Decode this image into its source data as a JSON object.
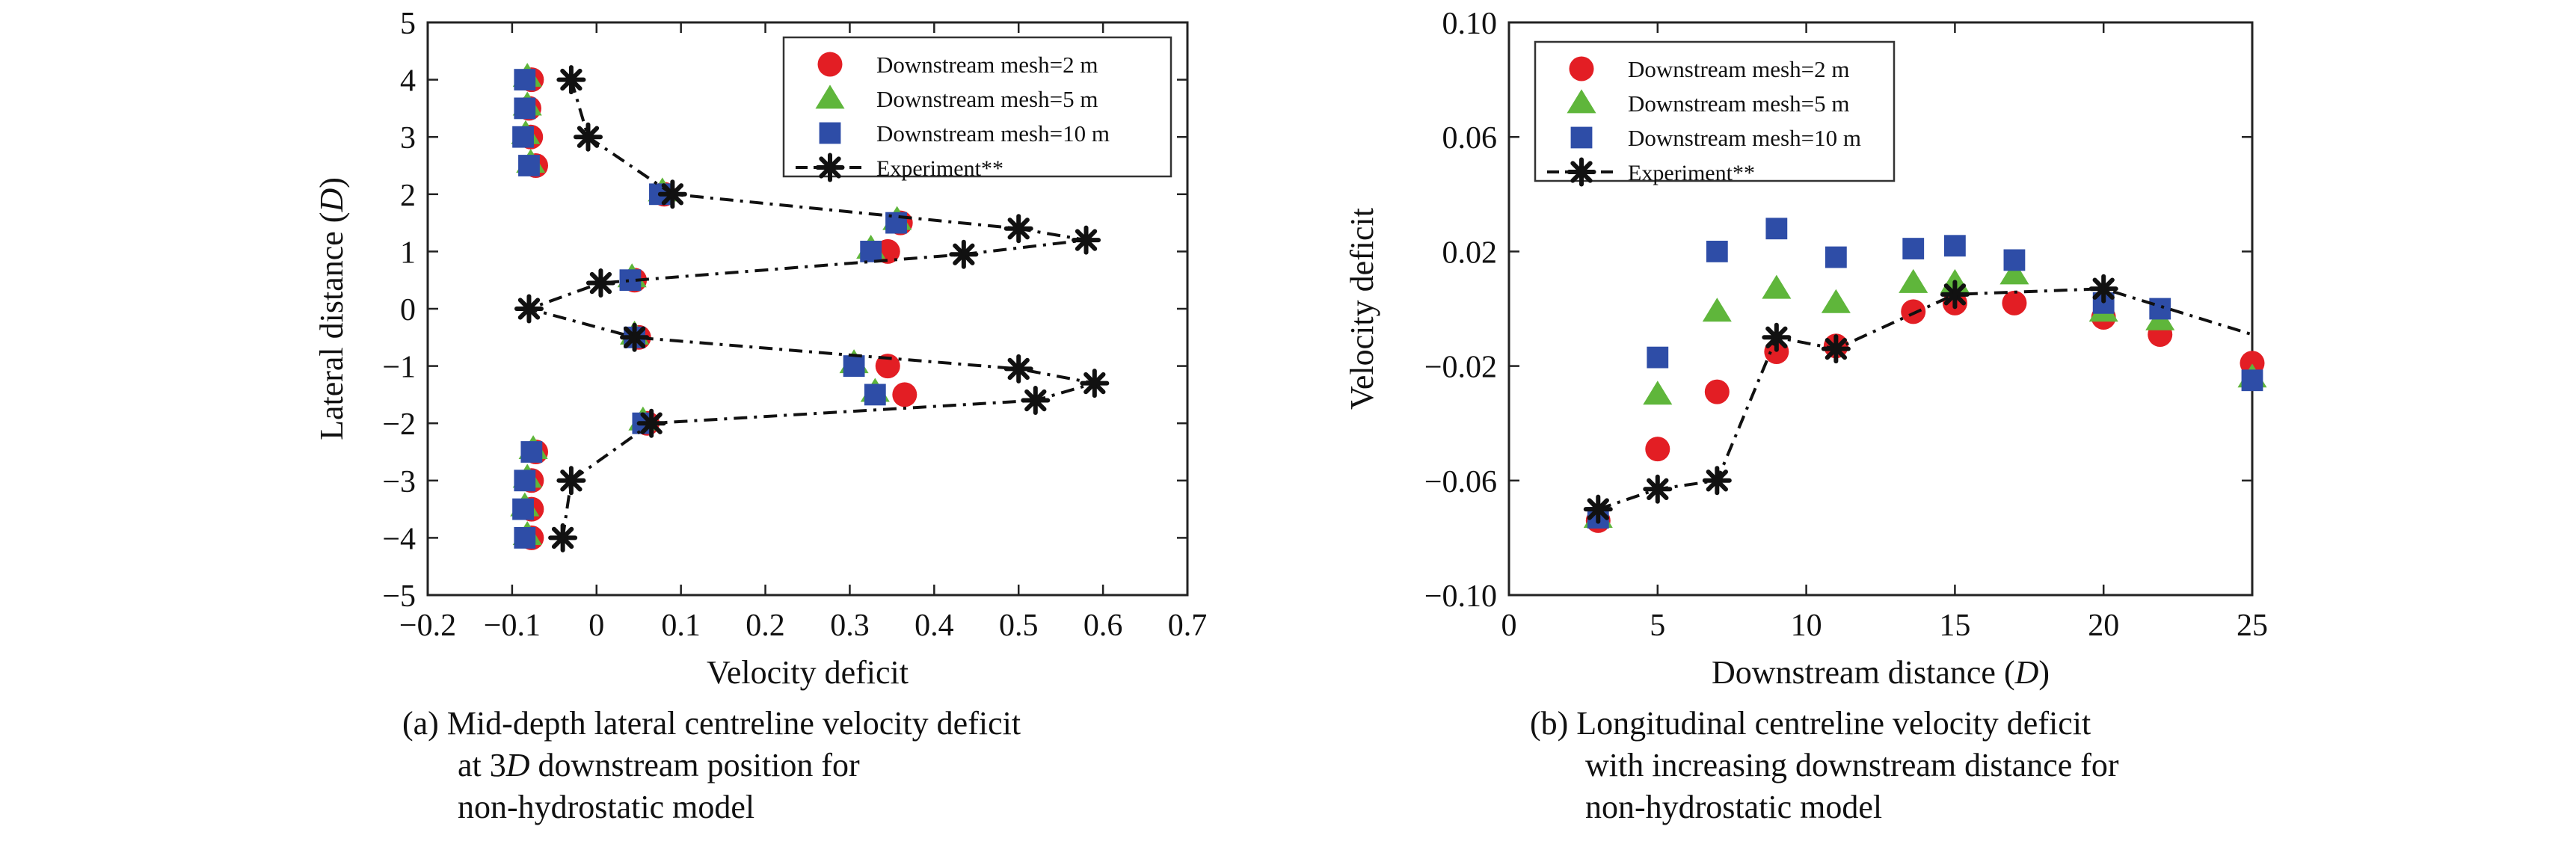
{
  "chart_data": [
    {
      "type": "scatter",
      "panel": "a",
      "xlabel": "Velocity deficit",
      "ylabel_main": "Lateral distance (",
      "ylabel_italic": "D",
      "ylabel_end": ")",
      "xlim": [
        -0.2,
        0.7
      ],
      "ylim": [
        -5,
        5
      ],
      "xticks": [
        -0.2,
        -0.1,
        0,
        0.1,
        0.2,
        0.3,
        0.4,
        0.5,
        0.6,
        0.7
      ],
      "xtick_labels": [
        "−0.2",
        "−0.1",
        "0",
        "0.1",
        "0.2",
        "0.3",
        "0.4",
        "0.5",
        "0.6",
        "0.7"
      ],
      "yticks": [
        -5,
        -4,
        -3,
        -2,
        -1,
        0,
        1,
        2,
        3,
        4,
        5
      ],
      "ytick_labels": [
        "−5",
        "−4",
        "−3",
        "−2",
        "−1",
        "0",
        "1",
        "2",
        "3",
        "4",
        "5"
      ],
      "legend_position": "top-right",
      "caption_lines": [
        "(a) Mid-depth lateral centreline velocity deficit",
        "at 3D downstream position for",
        "non-hydrostatic model"
      ],
      "series": [
        {
          "name": "Downstream mesh=2 m",
          "marker": "circle",
          "color": "#e31e24",
          "points": [
            [
              -0.077,
              4
            ],
            [
              -0.08,
              3.5
            ],
            [
              -0.078,
              3
            ],
            [
              -0.072,
              2.5
            ],
            [
              0.08,
              2
            ],
            [
              0.36,
              1.5
            ],
            [
              0.345,
              1
            ],
            [
              0.045,
              0.5
            ],
            [
              0.05,
              -0.5
            ],
            [
              0.345,
              -1
            ],
            [
              0.365,
              -1.5
            ],
            [
              0.06,
              -2
            ],
            [
              -0.072,
              -2.5
            ],
            [
              -0.077,
              -3
            ],
            [
              -0.077,
              -3.5
            ],
            [
              -0.077,
              -4
            ]
          ]
        },
        {
          "name": "Downstream mesh=5 m",
          "marker": "triangle",
          "color": "#5fb63b",
          "points": [
            [
              -0.082,
              4.05
            ],
            [
              -0.082,
              3.55
            ],
            [
              -0.084,
              3.05
            ],
            [
              -0.078,
              2.55
            ],
            [
              0.078,
              2.05
            ],
            [
              0.356,
              1.55
            ],
            [
              0.325,
              1.05
            ],
            [
              0.042,
              0.55
            ],
            [
              0.045,
              -0.45
            ],
            [
              0.305,
              -0.95
            ],
            [
              0.33,
              -1.45
            ],
            [
              0.055,
              -1.95
            ],
            [
              -0.075,
              -2.45
            ],
            [
              -0.082,
              -2.95
            ],
            [
              -0.085,
              -3.45
            ],
            [
              -0.082,
              -3.95
            ]
          ]
        },
        {
          "name": "Downstream mesh=10 m",
          "marker": "square",
          "color": "#2e4da7",
          "points": [
            [
              -0.085,
              4
            ],
            [
              -0.085,
              3.5
            ],
            [
              -0.087,
              3
            ],
            [
              -0.08,
              2.5
            ],
            [
              0.075,
              2
            ],
            [
              0.355,
              1.5
            ],
            [
              0.325,
              1
            ],
            [
              0.04,
              0.5
            ],
            [
              0.045,
              -0.5
            ],
            [
              0.305,
              -1
            ],
            [
              0.33,
              -1.5
            ],
            [
              0.055,
              -2
            ],
            [
              -0.077,
              -2.5
            ],
            [
              -0.085,
              -3
            ],
            [
              -0.087,
              -3.5
            ],
            [
              -0.085,
              -4
            ]
          ]
        },
        {
          "name": "Experiment**",
          "marker": "asterisk",
          "color": "#111111",
          "line": "dashdot",
          "points": [
            [
              -0.03,
              4
            ],
            [
              -0.01,
              3
            ],
            [
              0.09,
              2
            ],
            [
              0.5,
              1.4
            ],
            [
              0.58,
              1.2
            ],
            [
              0.435,
              0.95
            ],
            [
              0.005,
              0.45
            ],
            [
              -0.08,
              0
            ],
            [
              0.045,
              -0.5
            ],
            [
              0.5,
              -1.05
            ],
            [
              0.59,
              -1.3
            ],
            [
              0.52,
              -1.6
            ],
            [
              0.065,
              -2
            ],
            [
              -0.03,
              -3
            ],
            [
              -0.04,
              -4
            ]
          ]
        }
      ]
    },
    {
      "type": "scatter",
      "panel": "b",
      "xlabel_main": "Downstream distance (",
      "xlabel_italic": "D",
      "xlabel_end": ")",
      "ylabel": "Velocity deficit",
      "xlim": [
        0,
        25
      ],
      "ylim": [
        -0.1,
        0.1
      ],
      "xticks": [
        0,
        5,
        10,
        15,
        20,
        25
      ],
      "xtick_labels": [
        "0",
        "5",
        "10",
        "15",
        "20",
        "25"
      ],
      "yticks": [
        -0.1,
        -0.06,
        -0.02,
        0.02,
        0.06,
        0.1
      ],
      "ytick_labels": [
        "−0.10",
        "−0.06",
        "−0.02",
        "0.02",
        "0.06",
        "0.10"
      ],
      "legend_position": "top-left",
      "caption_lines": [
        "(b) Longitudinal centreline velocity deficit",
        "with increasing downstream distance for",
        "non-hydrostatic model"
      ],
      "series": [
        {
          "name": "Downstream mesh=2 m",
          "marker": "circle",
          "color": "#e31e24",
          "points": [
            [
              3,
              -0.074
            ],
            [
              5,
              -0.049
            ],
            [
              7,
              -0.029
            ],
            [
              9,
              -0.015
            ],
            [
              11,
              -0.013
            ],
            [
              13.6,
              -0.001
            ],
            [
              15,
              0.002
            ],
            [
              17,
              0.002
            ],
            [
              20,
              -0.003
            ],
            [
              21.9,
              -0.009
            ],
            [
              25,
              -0.019
            ]
          ]
        },
        {
          "name": "Downstream mesh=5 m",
          "marker": "triangle",
          "color": "#5fb63b",
          "points": [
            [
              3,
              -0.073
            ],
            [
              5,
              -0.03
            ],
            [
              7,
              -0.001
            ],
            [
              9,
              0.007
            ],
            [
              11,
              0.002
            ],
            [
              13.6,
              0.009
            ],
            [
              15,
              0.009
            ],
            [
              17,
              0.012
            ],
            [
              20,
              -0.001
            ],
            [
              21.9,
              -0.004
            ],
            [
              25,
              -0.024
            ]
          ]
        },
        {
          "name": "Downstream mesh=10 m",
          "marker": "square",
          "color": "#2e4da7",
          "points": [
            [
              3,
              -0.073
            ],
            [
              5,
              -0.017
            ],
            [
              7,
              0.02
            ],
            [
              9,
              0.028
            ],
            [
              11,
              0.018
            ],
            [
              13.6,
              0.021
            ],
            [
              15,
              0.022
            ],
            [
              17,
              0.017
            ],
            [
              20,
              0.002
            ],
            [
              21.9,
              0
            ],
            [
              25,
              -0.025
            ]
          ]
        },
        {
          "name": "Experiment**",
          "marker": "asterisk",
          "color": "#111111",
          "line": "dashdot",
          "points": [
            [
              3,
              -0.07
            ],
            [
              5,
              -0.063
            ],
            [
              7,
              -0.06
            ],
            [
              9,
              -0.01
            ],
            [
              11,
              -0.014
            ],
            [
              15,
              0.005
            ],
            [
              20,
              0.007
            ],
            [
              25,
              -0.009
            ]
          ],
          "marker_count": 7
        }
      ]
    }
  ]
}
